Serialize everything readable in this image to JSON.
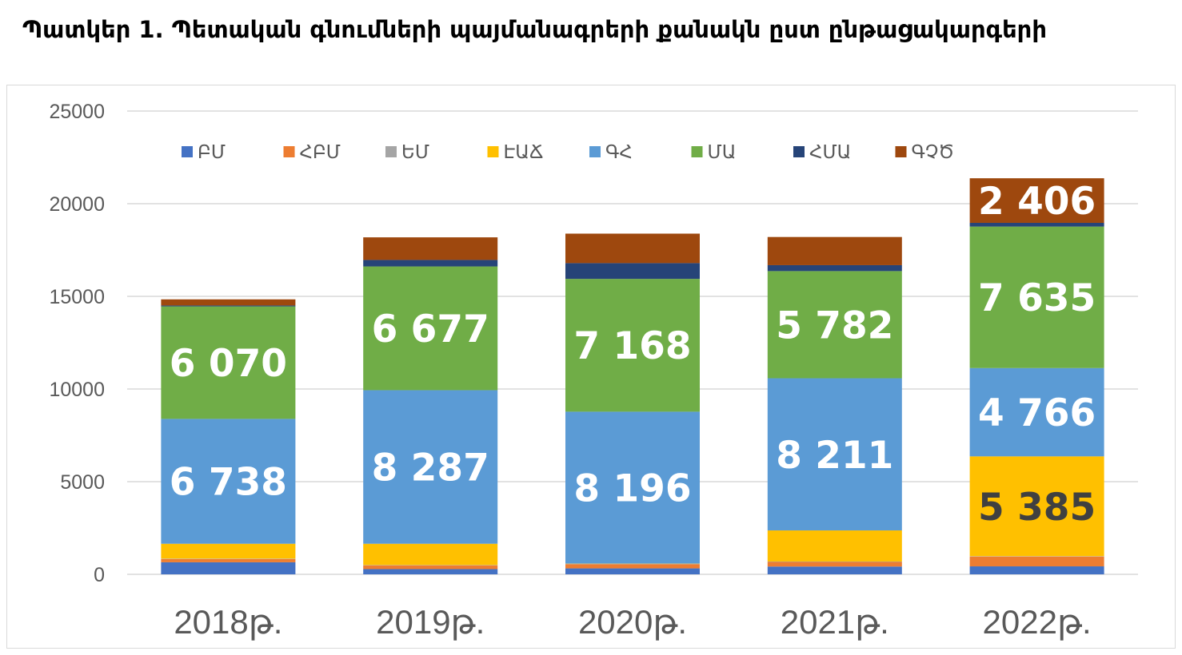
{
  "title": "Պատկեր 1.  Պետական գնումների պայմանագրերի քանակն ըստ ընթացակարգերի",
  "chart_data": {
    "type": "bar",
    "stacked": true,
    "categories": [
      "2018թ.",
      "2019թ.",
      "2020թ.",
      "2021թ.",
      "2022թ."
    ],
    "ylim": [
      0,
      25000
    ],
    "yticks": [
      "0",
      "5000",
      "10000",
      "15000",
      "20000",
      "25000"
    ],
    "grid": true,
    "legend_position": "top",
    "series": [
      {
        "name": "ԲՄ",
        "color": "#4472c4",
        "values": [
          650,
          280,
          320,
          420,
          430
        ]
      },
      {
        "name": "ՀԲՄ",
        "color": "#ed7d31",
        "values": [
          180,
          200,
          230,
          250,
          530
        ]
      },
      {
        "name": "ԵՄ",
        "color": "#a5a5a5",
        "values": [
          20,
          20,
          20,
          20,
          20
        ]
      },
      {
        "name": "ԷԱՃ",
        "color": "#ffc000",
        "values": [
          800,
          1150,
          10,
          1680,
          5385
        ]
      },
      {
        "name": "ԳՀ",
        "color": "#5b9bd5",
        "values": [
          6738,
          8287,
          8196,
          8211,
          4766
        ]
      },
      {
        "name": "ՄԱ",
        "color": "#70ad47",
        "values": [
          6070,
          6677,
          7168,
          5782,
          7635
        ]
      },
      {
        "name": "ՀՄԱ",
        "color": "#264478",
        "values": [
          50,
          350,
          850,
          320,
          200
        ]
      },
      {
        "name": "ԳՉԾ",
        "color": "#9e480e",
        "values": [
          330,
          1220,
          1590,
          1520,
          2406
        ]
      }
    ],
    "data_labels": [
      {
        "series": "ԳՀ",
        "values": [
          "6 738",
          "8 287",
          "8 196",
          "8 211",
          "4 766"
        ],
        "color": "#ffffff"
      },
      {
        "series": "ՄԱ",
        "values": [
          "6 070",
          "6 677",
          "7 168",
          "5 782",
          "7 635"
        ],
        "color": "#ffffff"
      },
      {
        "series": "ԷԱՃ",
        "values": [
          null,
          null,
          null,
          null,
          "5 385"
        ],
        "color": "#404040"
      },
      {
        "series": "ԳՉԾ",
        "values": [
          null,
          null,
          null,
          null,
          "2 406"
        ],
        "color": "#ffffff"
      }
    ]
  }
}
